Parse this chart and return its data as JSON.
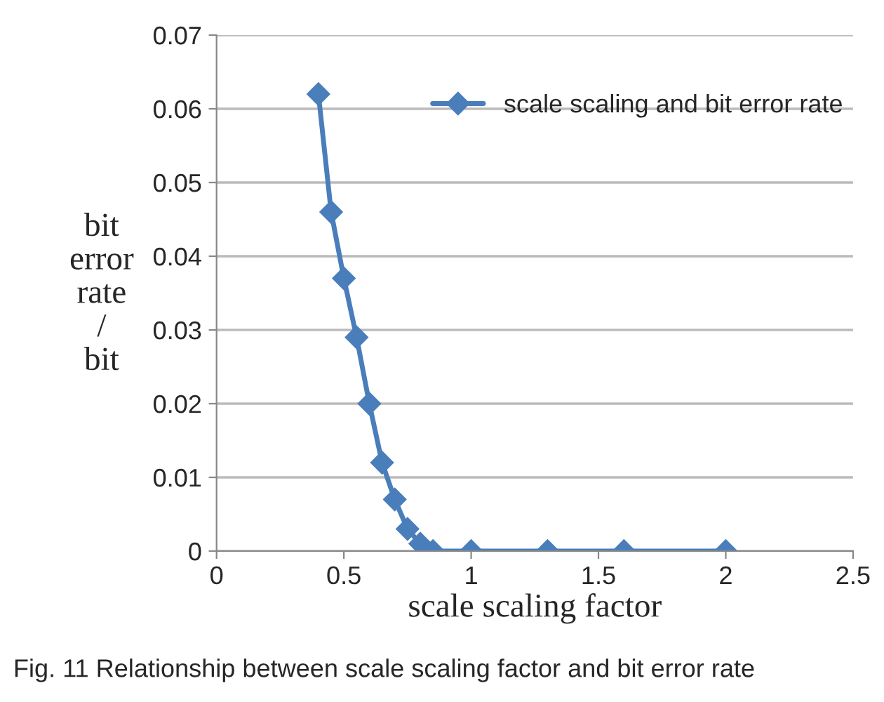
{
  "chart_data": {
    "type": "line",
    "xlabel": "scale scaling factor",
    "ylabel": "bit\nerror\nrate\n/\nbit",
    "annotations": [
      "Fig. 11 Relationship between scale scaling factor and bit error rate"
    ],
    "x": [
      0.4,
      0.45,
      0.5,
      0.55,
      0.6,
      0.65,
      0.7,
      0.75,
      0.8,
      0.85,
      1.0,
      1.3,
      1.6,
      2.0
    ],
    "series": [
      {
        "name": "scale scaling and bit error rate",
        "color": "#4a7ebb",
        "values": [
          0.062,
          0.046,
          0.037,
          0.029,
          0.02,
          0.012,
          0.007,
          0.003,
          0.001,
          0,
          0,
          0,
          0,
          0
        ]
      }
    ],
    "xlim": [
      0,
      2.5
    ],
    "xticks": [
      0,
      0.5,
      1,
      1.5,
      2,
      2.5
    ],
    "ylim": [
      0,
      0.07
    ],
    "yticks": [
      0,
      0.01,
      0.02,
      0.03,
      0.04,
      0.05,
      0.06,
      0.07
    ],
    "grid": "y",
    "legend": "top right",
    "marker": "diamond",
    "line_style": "solid"
  }
}
